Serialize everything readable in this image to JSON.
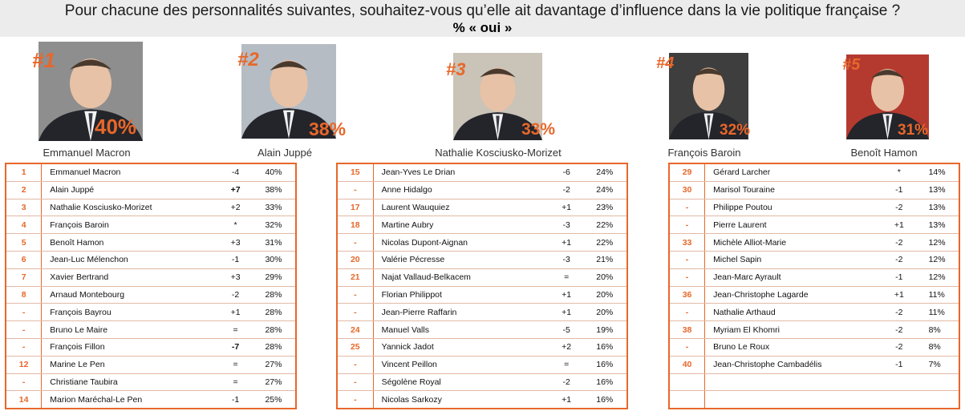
{
  "header": {
    "question": "Pour chacune des personnalités suivantes, souhaitez-vous qu’elle ait davantage d’influence dans la vie politique française ?",
    "subtitle": "% « oui »"
  },
  "colors": {
    "accent": "#e8672a",
    "up": "#2ca02c",
    "down": "#e03030"
  },
  "podium": [
    {
      "rank": "#1",
      "pct": "40%",
      "name": "Emmanuel Macron"
    },
    {
      "rank": "#2",
      "pct": "38%",
      "name": "Alain Juppé"
    },
    {
      "rank": "#3",
      "pct": "33%",
      "name": "Nathalie Kosciusko-Morizet"
    },
    {
      "rank": "#4",
      "pct": "32%",
      "name": "François Baroin"
    },
    {
      "rank": "#5",
      "pct": "31%",
      "name": "Benoît Hamon"
    }
  ],
  "chart_data": {
    "type": "table",
    "columns": [
      "rank",
      "name",
      "evolution",
      "percent"
    ],
    "rows": [
      {
        "rank": "1",
        "name": "Emmanuel Macron",
        "evolution": "-4",
        "percent": "40%"
      },
      {
        "rank": "2",
        "name": "Alain Juppé",
        "evolution": "+7",
        "percent": "38%"
      },
      {
        "rank": "3",
        "name": "Nathalie Kosciusko-Morizet",
        "evolution": "+2",
        "percent": "33%"
      },
      {
        "rank": "4",
        "name": "François Baroin",
        "evolution": "*",
        "percent": "32%"
      },
      {
        "rank": "5",
        "name": "Benoît Hamon",
        "evolution": "+3",
        "percent": "31%"
      },
      {
        "rank": "6",
        "name": "Jean-Luc Mélenchon",
        "evolution": "-1",
        "percent": "30%"
      },
      {
        "rank": "7",
        "name": "Xavier Bertrand",
        "evolution": "+3",
        "percent": "29%"
      },
      {
        "rank": "8",
        "name": "Arnaud Montebourg",
        "evolution": "-2",
        "percent": "28%"
      },
      {
        "rank": "-",
        "name": "François Bayrou",
        "evolution": "+1",
        "percent": "28%"
      },
      {
        "rank": "-",
        "name": "Bruno Le Maire",
        "evolution": "=",
        "percent": "28%"
      },
      {
        "rank": "-",
        "name": "François Fillon",
        "evolution": "-7",
        "percent": "28%"
      },
      {
        "rank": "12",
        "name": "Marine Le Pen",
        "evolution": "=",
        "percent": "27%"
      },
      {
        "rank": "-",
        "name": "Christiane Taubira",
        "evolution": "=",
        "percent": "27%"
      },
      {
        "rank": "14",
        "name": "Marion Maréchal-Le Pen",
        "evolution": "-1",
        "percent": "25%"
      },
      {
        "rank": "15",
        "name": "Jean-Yves Le Drian",
        "evolution": "-6",
        "percent": "24%"
      },
      {
        "rank": "-",
        "name": "Anne Hidalgo",
        "evolution": "-2",
        "percent": "24%"
      },
      {
        "rank": "17",
        "name": "Laurent Wauquiez",
        "evolution": "+1",
        "percent": "23%"
      },
      {
        "rank": "18",
        "name": "Martine Aubry",
        "evolution": "-3",
        "percent": "22%"
      },
      {
        "rank": "-",
        "name": "Nicolas Dupont-Aignan",
        "evolution": "+1",
        "percent": "22%"
      },
      {
        "rank": "20",
        "name": "Valérie Pécresse",
        "evolution": "-3",
        "percent": "21%"
      },
      {
        "rank": "21",
        "name": "Najat Vallaud-Belkacem",
        "evolution": "=",
        "percent": "20%"
      },
      {
        "rank": "-",
        "name": "Florian Philippot",
        "evolution": "+1",
        "percent": "20%"
      },
      {
        "rank": "-",
        "name": "Jean-Pierre Raffarin",
        "evolution": "+1",
        "percent": "20%"
      },
      {
        "rank": "24",
        "name": "Manuel Valls",
        "evolution": "-5",
        "percent": "19%"
      },
      {
        "rank": "25",
        "name": "Yannick Jadot",
        "evolution": "+2",
        "percent": "16%"
      },
      {
        "rank": "-",
        "name": "Vincent Peillon",
        "evolution": "=",
        "percent": "16%"
      },
      {
        "rank": "-",
        "name": "Ségolène Royal",
        "evolution": "-2",
        "percent": "16%"
      },
      {
        "rank": "-",
        "name": "Nicolas Sarkozy",
        "evolution": "+1",
        "percent": "16%"
      },
      {
        "rank": "29",
        "name": "Gérard Larcher",
        "evolution": "*",
        "percent": "14%"
      },
      {
        "rank": "30",
        "name": "Marisol Touraine",
        "evolution": "-1",
        "percent": "13%"
      },
      {
        "rank": "-",
        "name": "Philippe Poutou",
        "evolution": "-2",
        "percent": "13%"
      },
      {
        "rank": "-",
        "name": "Pierre Laurent",
        "evolution": "+1",
        "percent": "13%"
      },
      {
        "rank": "33",
        "name": "Michèle Alliot-Marie",
        "evolution": "-2",
        "percent": "12%"
      },
      {
        "rank": "-",
        "name": "Michel Sapin",
        "evolution": "-2",
        "percent": "12%"
      },
      {
        "rank": "-",
        "name": "Jean-Marc Ayrault",
        "evolution": "-1",
        "percent": "12%"
      },
      {
        "rank": "36",
        "name": "Jean-Christophe Lagarde",
        "evolution": "+1",
        "percent": "11%"
      },
      {
        "rank": "-",
        "name": "Nathalie Arthaud",
        "evolution": "-2",
        "percent": "11%"
      },
      {
        "rank": "38",
        "name": "Myriam El Khomri",
        "evolution": "-2",
        "percent": "8%"
      },
      {
        "rank": "-",
        "name": "Bruno Le Roux",
        "evolution": "-2",
        "percent": "8%"
      },
      {
        "rank": "40",
        "name": "Jean-Christophe Cambadélis",
        "evolution": "-1",
        "percent": "7%"
      }
    ]
  }
}
